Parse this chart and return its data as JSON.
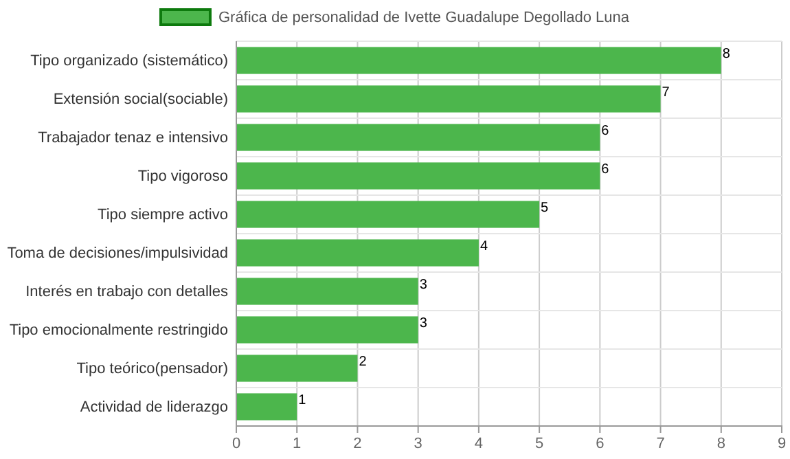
{
  "chart_data": {
    "type": "bar",
    "orientation": "horizontal",
    "categories": [
      "Tipo organizado (sistemático)",
      "Extensión social(sociable)",
      "Trabajador tenaz e intensivo",
      "Tipo vigoroso",
      "Tipo siempre activo",
      "Toma de decisiones/impulsividad",
      "Interés en trabajo con detalles",
      "Tipo emocionalmente restringido",
      "Tipo teórico(pensador)",
      "Actividad de liderazgo"
    ],
    "series": [
      {
        "name": "Gráfica de personalidad de Ivette Guadalupe Degollado Luna",
        "color": "#4cb64c",
        "values": [
          8,
          7,
          6,
          6,
          5,
          4,
          3,
          3,
          2,
          1
        ]
      }
    ],
    "xlim": [
      0,
      9
    ],
    "xticks": [
      0,
      1,
      2,
      3,
      4,
      5,
      6,
      7,
      8,
      9
    ],
    "grid": true,
    "legend": "top",
    "data_labels": true
  }
}
